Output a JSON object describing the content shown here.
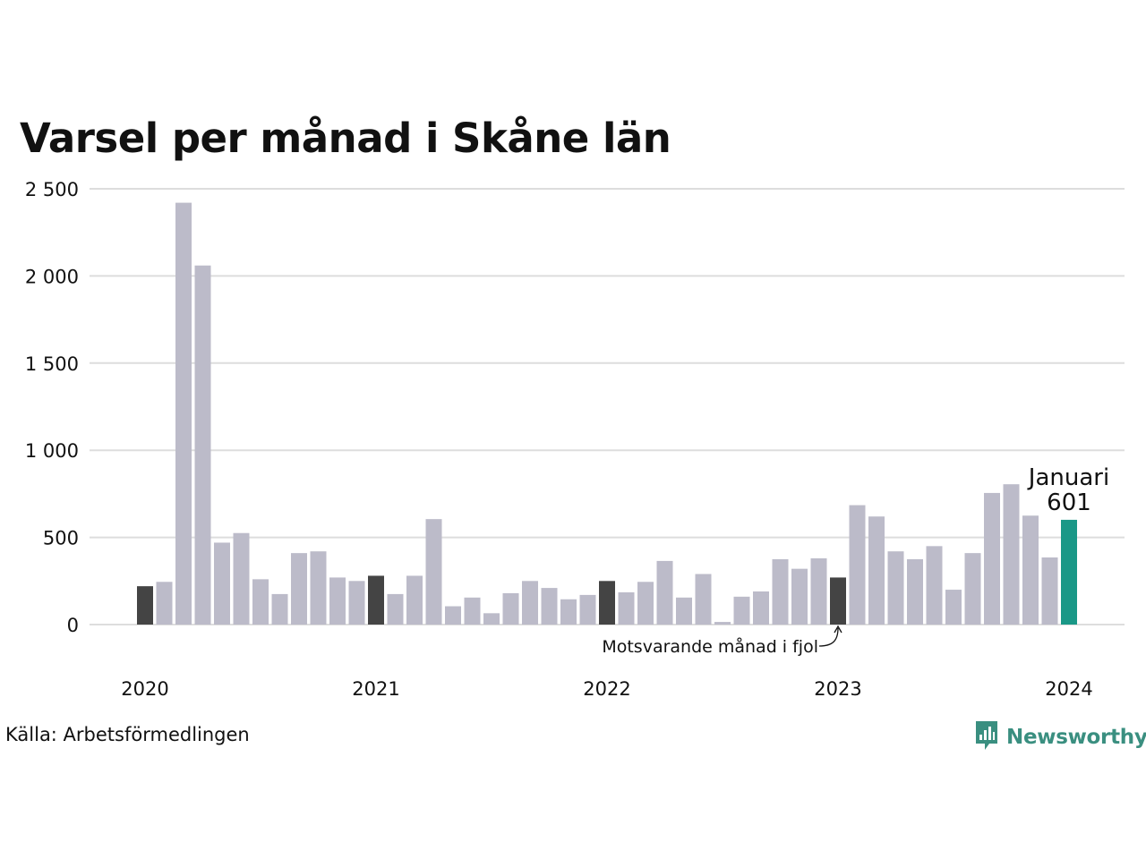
{
  "chart_data": {
    "type": "bar",
    "title": "Varsel per månad i Skåne län",
    "ylim": [
      0,
      2500
    ],
    "y_ticks": [
      0,
      500,
      1000,
      1500,
      2000,
      2500
    ],
    "y_tick_labels": [
      "0",
      "500",
      "1 000",
      "1 500",
      "2 000",
      "2 500"
    ],
    "x_tick_labels": [
      {
        "label": "2020",
        "at": "2020-01"
      },
      {
        "label": "2021",
        "at": "2021-01"
      },
      {
        "label": "2022",
        "at": "2022-01"
      },
      {
        "label": "2023",
        "at": "2023-01"
      },
      {
        "label": "2024",
        "at": "2024-01"
      }
    ],
    "grid": true,
    "categories": [
      "2020-01",
      "2020-02",
      "2020-03",
      "2020-04",
      "2020-05",
      "2020-06",
      "2020-07",
      "2020-08",
      "2020-09",
      "2020-10",
      "2020-11",
      "2020-12",
      "2021-01",
      "2021-02",
      "2021-03",
      "2021-04",
      "2021-05",
      "2021-06",
      "2021-07",
      "2021-08",
      "2021-09",
      "2021-10",
      "2021-11",
      "2021-12",
      "2022-01",
      "2022-02",
      "2022-03",
      "2022-04",
      "2022-05",
      "2022-06",
      "2022-07",
      "2022-08",
      "2022-09",
      "2022-10",
      "2022-11",
      "2022-12",
      "2023-01",
      "2023-02",
      "2023-03",
      "2023-04",
      "2023-05",
      "2023-06",
      "2023-07",
      "2023-08",
      "2023-09",
      "2023-10",
      "2023-11",
      "2023-12",
      "2024-01"
    ],
    "values": [
      220,
      245,
      2420,
      2060,
      470,
      525,
      260,
      175,
      410,
      420,
      270,
      250,
      280,
      175,
      280,
      605,
      105,
      155,
      65,
      180,
      250,
      210,
      145,
      170,
      250,
      185,
      245,
      365,
      155,
      290,
      15,
      160,
      190,
      375,
      320,
      380,
      270,
      685,
      620,
      420,
      375,
      450,
      200,
      410,
      755,
      805,
      625,
      385,
      601
    ],
    "highlight": {
      "label": "Januari",
      "value_label": "601",
      "index": 48
    },
    "same_month_last_year_indices": [
      0,
      12,
      24,
      36
    ],
    "annotation": {
      "text": "Motsvarande månad i fjol",
      "index": 36
    },
    "colors": {
      "bar": "#bcbbc9",
      "same_month": "#444444",
      "highlight": "#1a9887",
      "grid": "#dddddd"
    }
  },
  "footer": {
    "source": "Källa: Arbetsförmedlingen",
    "brand": "Newsworthy",
    "brand_color": "#3a8f80",
    "brand_icon": "newsworthy-logo-icon"
  }
}
